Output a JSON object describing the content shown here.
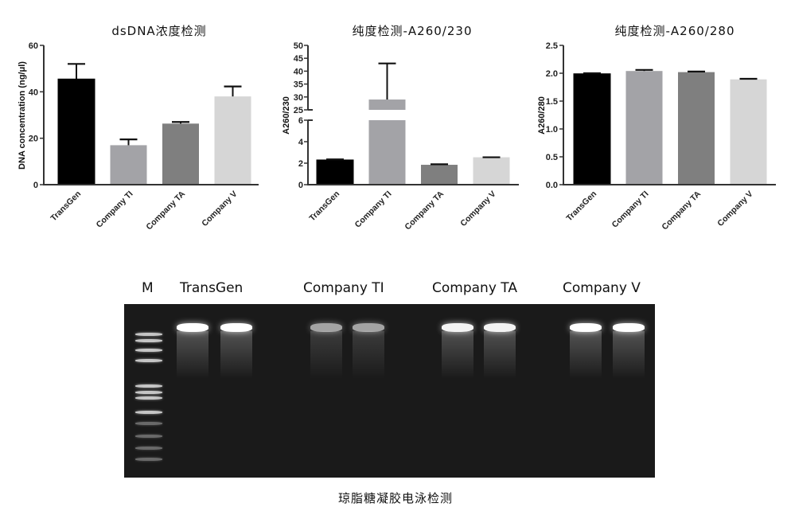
{
  "chart_data": [
    {
      "type": "bar",
      "title": "dsDNA浓度检测",
      "ylabel": "DNA  concentration (ng/μl)",
      "categories": [
        "TransGen",
        "Company TI",
        "Company TA",
        "Company V"
      ],
      "values": [
        45.5,
        17,
        26.3,
        38
      ],
      "error_upper": [
        52,
        19.5,
        27,
        42.3
      ],
      "ylim": [
        0,
        60
      ],
      "yticks": [
        0,
        20,
        40,
        60
      ],
      "colors": [
        "#000000",
        "#a3a3a7",
        "#7f7f7f",
        "#d6d6d6"
      ]
    },
    {
      "type": "bar",
      "title": "纯度检测-A260/230",
      "ylabel": "A260/230",
      "categories": [
        "TransGen",
        "Company TI",
        "Company TA",
        "Company V"
      ],
      "values": [
        2.3,
        29,
        1.85,
        2.55
      ],
      "error_upper": [
        2.35,
        43,
        1.9,
        2.55
      ],
      "axis_break": {
        "lower": [
          0,
          6
        ],
        "upper": [
          25,
          50
        ]
      },
      "yticks_lower": [
        0,
        2,
        4,
        6
      ],
      "yticks_upper": [
        25,
        30,
        35,
        40,
        45,
        50
      ],
      "colors": [
        "#000000",
        "#a3a3a7",
        "#7f7f7f",
        "#d6d6d6"
      ]
    },
    {
      "type": "bar",
      "title": "纯度检测-A260/280",
      "ylabel": "A260/280",
      "categories": [
        "TransGen",
        "Company TI",
        "Company TA",
        "Company V"
      ],
      "values": [
        1.99,
        2.04,
        2.02,
        1.89
      ],
      "error_upper": [
        2.0,
        2.06,
        2.03,
        1.9
      ],
      "ylim": [
        0,
        2.5
      ],
      "yticks": [
        "0.0",
        "0.5",
        "1.0",
        "1.5",
        "2.0",
        "2.5"
      ],
      "colors": [
        "#000000",
        "#a3a3a7",
        "#7f7f7f",
        "#d6d6d6"
      ]
    }
  ],
  "gel": {
    "lane_labels": [
      "M",
      "TransGen",
      "Company TI",
      "Company TA",
      "Company V"
    ],
    "caption": "琼脂糖凝胶电泳检测",
    "band_intensity": [
      1.0,
      0.6,
      0.95,
      1.0
    ]
  }
}
